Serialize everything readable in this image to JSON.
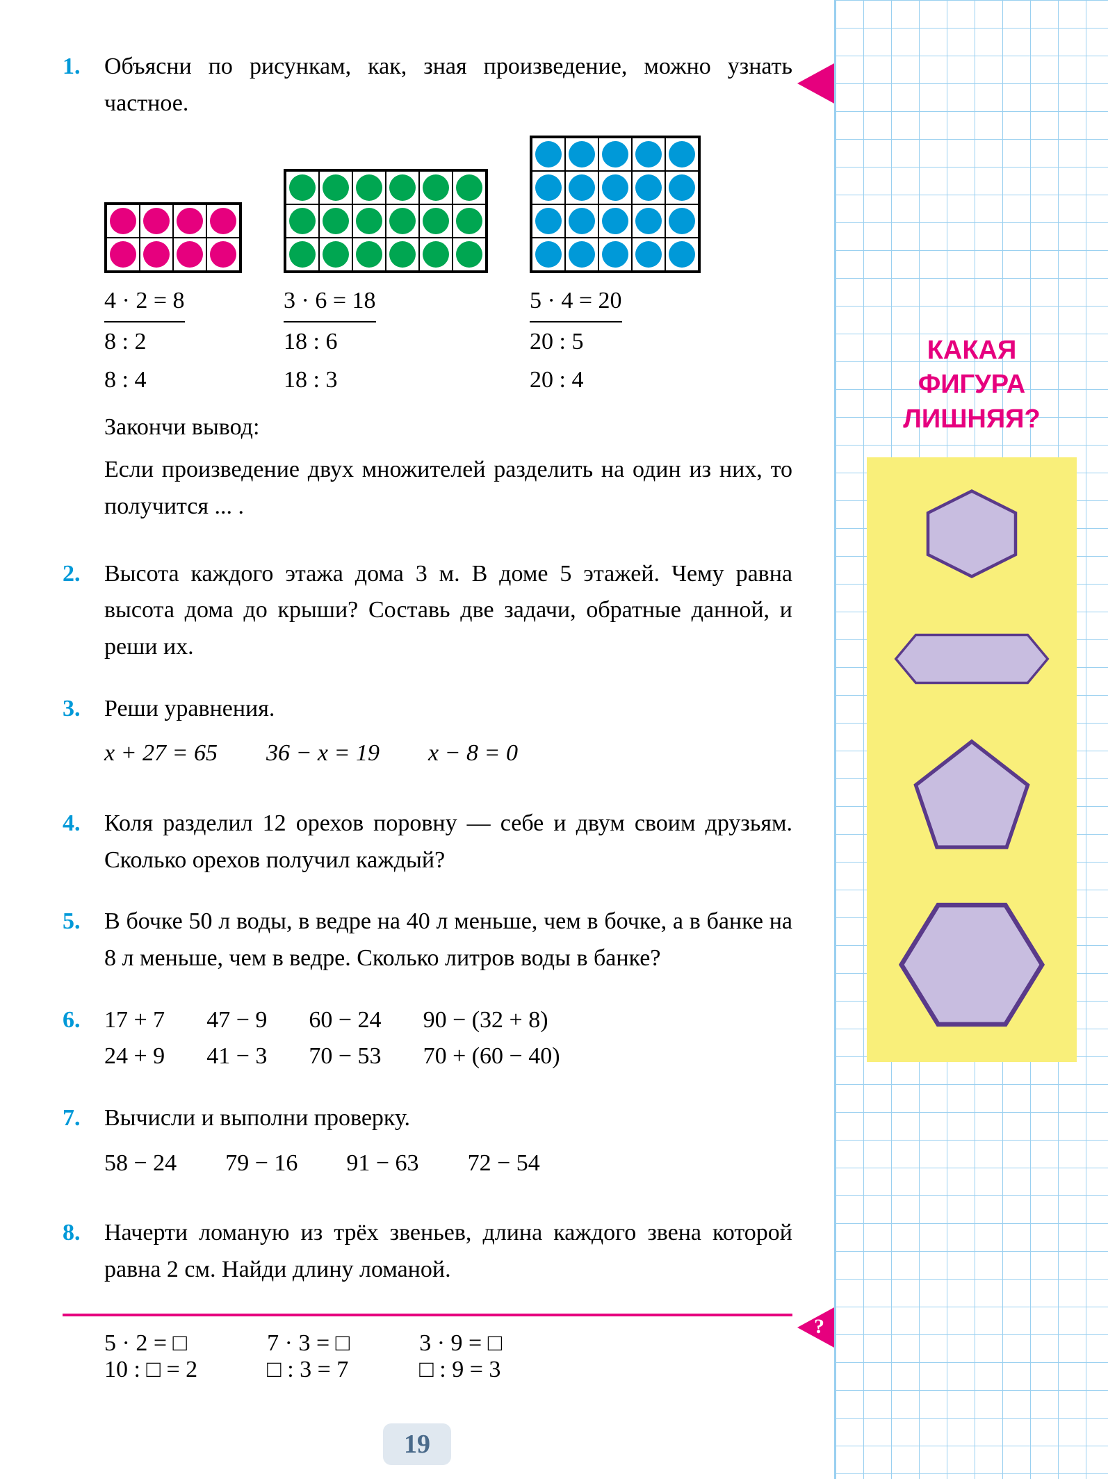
{
  "page_number": "19",
  "colors": {
    "prob_num": "#0099d8",
    "accent": "#e6007e",
    "grid_line": "#9ad0f0",
    "sidebar_box": "#f9ef7a",
    "shape_fill": "#c8bde0",
    "shape_stroke": "#5a3a8a",
    "dot_pink": "#e6007e",
    "dot_green": "#00a651",
    "dot_blue": "#0099d8"
  },
  "sidebar": {
    "title_l1": "КАКАЯ",
    "title_l2": "ФИГУРА",
    "title_l3": "ЛИШНЯЯ?"
  },
  "problems": {
    "p1": {
      "num": "1.",
      "text": "Объясни по рисункам, как, зная произведение, можно узнать частное.",
      "arrays": [
        {
          "rows": 2,
          "cols": 4,
          "color": "#e6007e",
          "eq_top": "4 · 2 = 8",
          "eq2": "8 : 2",
          "eq3": "8 : 4"
        },
        {
          "rows": 3,
          "cols": 6,
          "color": "#00a651",
          "eq_top": "3 · 6 = 18",
          "eq2": "18 : 6",
          "eq3": "18 : 3"
        },
        {
          "rows": 4,
          "cols": 5,
          "color": "#0099d8",
          "eq_top": "5 · 4 = 20",
          "eq2": "20 : 5",
          "eq3": "20 : 4"
        }
      ],
      "conclude1": "Закончи вывод:",
      "conclude2": "Если произведение двух множителей разделить на один из них, то получится ... ."
    },
    "p2": {
      "num": "2.",
      "text": "Высота каждого этажа дома 3 м. В доме 5 этажей. Чему равна высота дома до крыши? Составь две задачи, обратные данной, и реши их."
    },
    "p3": {
      "num": "3.",
      "text": "Реши уравнения.",
      "eqs": [
        "x + 27 = 65",
        "36 − x = 19",
        "x − 8 = 0"
      ]
    },
    "p4": {
      "num": "4.",
      "text": "Коля разделил 12 орехов поровну — себе и двум своим друзьям. Сколько орехов получил каждый?"
    },
    "p5": {
      "num": "5.",
      "text": "В бочке 50 л воды, в ведре на 40 л меньше, чем в бочке, а в банке на 8 л меньше, чем в ведре. Сколько литров воды в банке?"
    },
    "p6": {
      "num": "6.",
      "cols": [
        [
          "17 + 7",
          "24 + 9"
        ],
        [
          "47 − 9",
          "41 − 3"
        ],
        [
          "60 − 24",
          "70 − 53"
        ],
        [
          "90 − (32 + 8)",
          "70 + (60 − 40)"
        ]
      ]
    },
    "p7": {
      "num": "7.",
      "text": "Вычисли и выполни проверку.",
      "eqs": [
        "58 − 24",
        "79 − 16",
        "91 − 63",
        "72 − 54"
      ]
    },
    "p8": {
      "num": "8.",
      "text": "Начерти ломаную из трёх звеньев, длина каждого звена которой равна 2 см. Найди длину ломаной."
    },
    "bottom": {
      "c1": [
        "5 · 2 = □",
        "10 : □ = 2"
      ],
      "c2": [
        "7 · 3 = □",
        "□ : 3 = 7"
      ],
      "c3": [
        "3 · 9 = □",
        "□ : 9 = 3"
      ]
    }
  }
}
